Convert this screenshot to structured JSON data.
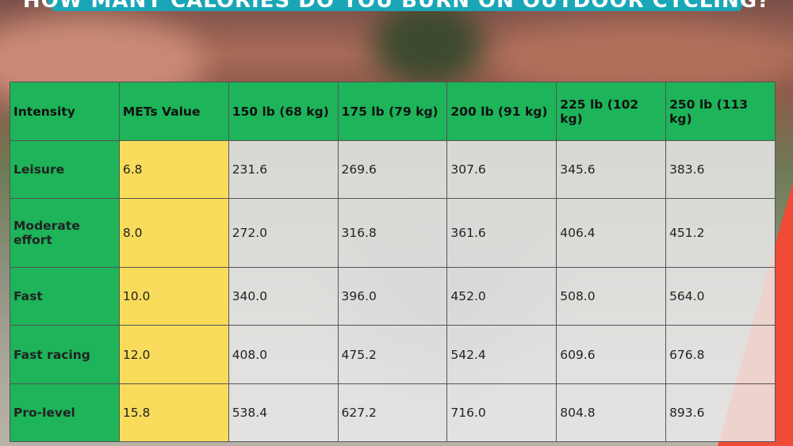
{
  "header": {
    "title": "HOW MANY CALORIES DO YOU BURN ON OUTDOOR CYCLING?"
  },
  "table": {
    "columns": [
      "Intensity",
      "METs Value",
      "150 lb (68 kg)",
      "175 lb (79 kg)",
      "200 lb (91 kg)",
      "225 lb (102 kg)",
      "250 lb (113 kg)"
    ],
    "rows": [
      [
        "Leisure",
        "6.8",
        "231.6",
        "269.6",
        "307.6",
        "345.6",
        "383.6"
      ],
      [
        "Moderate effort",
        "8.0",
        "272.0",
        "316.8",
        "361.6",
        "406.4",
        "451.2"
      ],
      [
        "Fast",
        "10.0",
        "340.0",
        "396.0",
        "452.0",
        "508.0",
        "564.0"
      ],
      [
        "Fast racing",
        "12.0",
        "408.0",
        "475.2",
        "542.4",
        "609.6",
        "676.8"
      ],
      [
        "Pro-level",
        "15.8",
        "538.4",
        "627.2",
        "716.0",
        "804.8",
        "893.6"
      ]
    ]
  }
}
